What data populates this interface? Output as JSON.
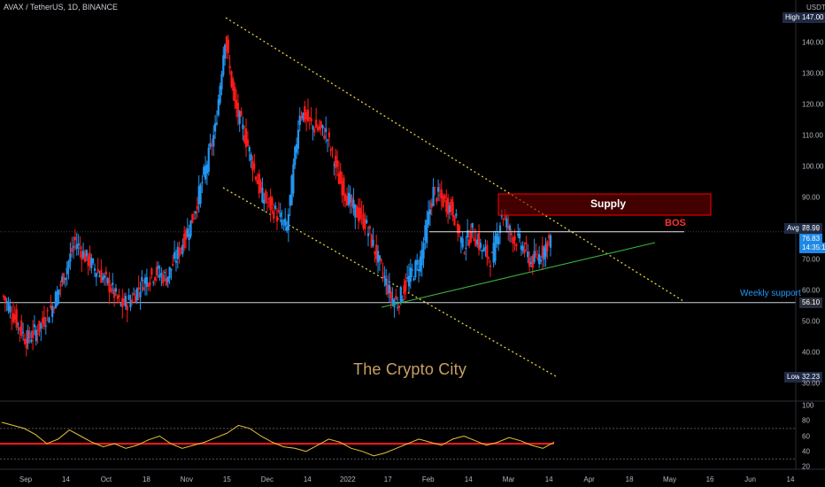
{
  "header": {
    "symbol_line": "AVAX / TetherUS, 1D, BINANCE"
  },
  "price_axis": {
    "unit": "USDT",
    "ticks": [
      "140.00",
      "130.00",
      "120.00",
      "110.00",
      "100.00",
      "90.00",
      "80.00",
      "70.00",
      "60.00",
      "50.00",
      "40.00",
      "30.00"
    ]
  },
  "tags": {
    "high_label": "High",
    "high_value": "147.00",
    "avg_label": "Avg",
    "avg_value": "78.99",
    "last_value": "76.83",
    "countdown": "14:35:13",
    "support_value": "56.10",
    "low_label": "Low",
    "low_value": "32.23"
  },
  "annotations": {
    "supply": "Supply",
    "bos": "BOS",
    "weekly_support": "Weekly support",
    "watermark": "The Crypto City"
  },
  "osc_axis": {
    "ticks": [
      "100",
      "80",
      "60",
      "40",
      "20"
    ]
  },
  "time_axis": {
    "labels": [
      "Sep",
      "14",
      "Oct",
      "18",
      "Nov",
      "15",
      "Dec",
      "14",
      "2022",
      "17",
      "Feb",
      "14",
      "Mar",
      "14",
      "Apr",
      "18",
      "May",
      "16",
      "Jun",
      "14"
    ]
  },
  "colors": {
    "bull": "#2196f3",
    "bear": "#ff1a1a",
    "channel": "#e6d23c",
    "trendline": "#3cb43c",
    "supply_box": "#ff0000",
    "oscillator": "#e6c33c",
    "osc_level": "#ff1a1a",
    "support_line": "#d1d4dc"
  },
  "chart_data": {
    "type": "candlestick",
    "ylim": [
      28,
      151
    ],
    "y_ticks": [
      30,
      40,
      50,
      60,
      70,
      80,
      90,
      100,
      110,
      120,
      130,
      140
    ],
    "approx_close_path": [
      [
        0,
        58
      ],
      [
        6,
        52
      ],
      [
        14,
        44
      ],
      [
        22,
        48
      ],
      [
        30,
        55
      ],
      [
        38,
        66
      ],
      [
        44,
        76
      ],
      [
        50,
        71
      ],
      [
        58,
        66
      ],
      [
        66,
        61
      ],
      [
        72,
        55
      ],
      [
        78,
        57
      ],
      [
        86,
        63
      ],
      [
        94,
        66
      ],
      [
        100,
        64
      ],
      [
        108,
        73
      ],
      [
        116,
        83
      ],
      [
        122,
        95
      ],
      [
        130,
        112
      ],
      [
        136,
        142
      ],
      [
        142,
        120
      ],
      [
        150,
        107
      ],
      [
        158,
        91
      ],
      [
        166,
        86
      ],
      [
        174,
        80
      ],
      [
        182,
        118
      ],
      [
        190,
        113
      ],
      [
        198,
        111
      ],
      [
        206,
        96
      ],
      [
        214,
        87
      ],
      [
        222,
        82
      ],
      [
        230,
        70
      ],
      [
        238,
        58
      ],
      [
        242,
        56
      ],
      [
        248,
        63
      ],
      [
        256,
        70
      ],
      [
        264,
        92
      ],
      [
        270,
        89
      ],
      [
        276,
        86
      ],
      [
        282,
        74
      ],
      [
        288,
        79
      ],
      [
        294,
        73
      ],
      [
        300,
        70
      ],
      [
        306,
        85
      ],
      [
        312,
        78
      ],
      [
        318,
        75
      ],
      [
        324,
        69
      ],
      [
        330,
        72
      ],
      [
        336,
        77
      ]
    ],
    "supply_zone": [
      84,
      91
    ],
    "bos_level": 79,
    "avg_price": 78.99,
    "last_price": 76.83,
    "weekly_support": 56.1,
    "high": 147.0,
    "low": 32.23,
    "oscillator": {
      "ylim": [
        20,
        100
      ],
      "level": 50,
      "upper_band": 70,
      "lower_band": 30,
      "values": [
        78,
        74,
        70,
        62,
        50,
        56,
        68,
        60,
        52,
        46,
        50,
        44,
        48,
        55,
        60,
        50,
        44,
        48,
        52,
        58,
        64,
        74,
        70,
        60,
        52,
        46,
        44,
        40,
        48,
        56,
        52,
        44,
        40,
        34,
        38,
        44,
        50,
        56,
        52,
        48,
        56,
        60,
        54,
        48,
        52,
        58,
        54,
        48,
        44,
        52
      ]
    }
  }
}
